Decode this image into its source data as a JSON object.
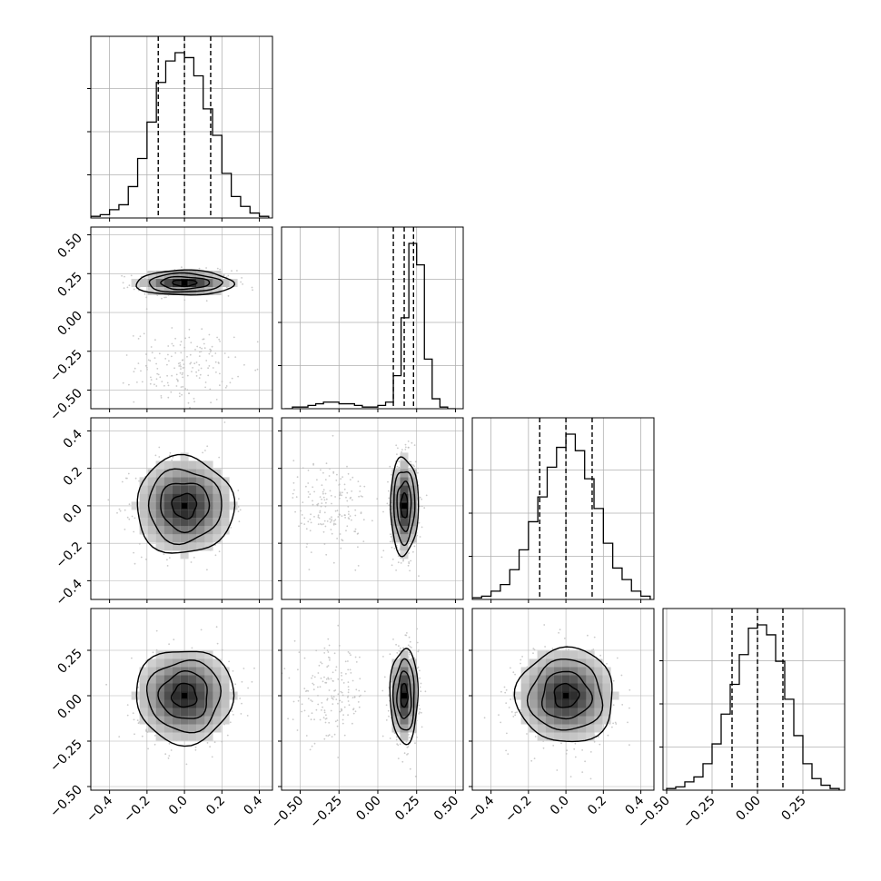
{
  "chart_data": {
    "type": "corner",
    "parameters": 4,
    "grid": true,
    "colors": {
      "hist": "#000000",
      "contour": "#000000",
      "points": "#bdbdbd",
      "grid": "#b0b0b0"
    },
    "axes": [
      {
        "range": [
          -0.5,
          0.47
        ],
        "ticks": [
          -0.4,
          -0.2,
          0.0,
          0.2,
          0.4
        ],
        "tick_labels": [
          "−0.4",
          "−0.2",
          "0.0",
          "0.2",
          "0.4"
        ]
      },
      {
        "range": [
          -0.62,
          0.55
        ],
        "ticks": [
          -0.5,
          -0.25,
          0.0,
          0.25,
          0.5
        ],
        "tick_labels": [
          "−0.50",
          "−0.25",
          "0.00",
          "0.25",
          "0.50"
        ]
      },
      {
        "range": [
          -0.5,
          0.47
        ],
        "ticks": [
          -0.4,
          -0.2,
          0.0,
          0.2,
          0.4
        ],
        "tick_labels": [
          "−0.4",
          "−0.2",
          "0.0",
          "0.2",
          "0.4"
        ]
      },
      {
        "range": [
          -0.52,
          0.48
        ],
        "ticks": [
          -0.5,
          -0.25,
          0.0,
          0.25
        ],
        "tick_labels": [
          "−0.50",
          "−0.25",
          "0.00",
          "0.25"
        ]
      }
    ],
    "marginals": [
      {
        "bin_edges": [
          -0.5,
          -0.45,
          -0.4,
          -0.35,
          -0.3,
          -0.25,
          -0.2,
          -0.15,
          -0.1,
          -0.05,
          0.0,
          0.05,
          0.1,
          0.15,
          0.2,
          0.25,
          0.3,
          0.35,
          0.4,
          0.45
        ],
        "counts": [
          0.01,
          0.02,
          0.05,
          0.08,
          0.19,
          0.36,
          0.58,
          0.82,
          0.95,
          1.0,
          0.97,
          0.86,
          0.66,
          0.5,
          0.27,
          0.13,
          0.07,
          0.03,
          0.01
        ],
        "quantiles": [
          -0.14,
          0.0,
          0.14
        ]
      },
      {
        "bin_edges": [
          -0.6,
          -0.55,
          -0.5,
          -0.45,
          -0.4,
          -0.35,
          -0.3,
          -0.25,
          -0.2,
          -0.15,
          -0.1,
          -0.05,
          0.0,
          0.05,
          0.1,
          0.15,
          0.2,
          0.25,
          0.3,
          0.35,
          0.4,
          0.45,
          0.5
        ],
        "counts": [
          0.0,
          0.01,
          0.01,
          0.02,
          0.03,
          0.04,
          0.04,
          0.03,
          0.03,
          0.02,
          0.01,
          0.01,
          0.02,
          0.04,
          0.2,
          0.55,
          1.0,
          0.87,
          0.3,
          0.06,
          0.01,
          0.0
        ],
        "quantiles": [
          0.1,
          0.17,
          0.23
        ]
      },
      {
        "bin_edges": [
          -0.5,
          -0.45,
          -0.4,
          -0.35,
          -0.3,
          -0.25,
          -0.2,
          -0.15,
          -0.1,
          -0.05,
          0.0,
          0.05,
          0.1,
          0.15,
          0.2,
          0.25,
          0.3,
          0.35,
          0.4,
          0.45
        ],
        "counts": [
          0.01,
          0.02,
          0.05,
          0.09,
          0.18,
          0.3,
          0.47,
          0.62,
          0.8,
          0.92,
          1.0,
          0.9,
          0.73,
          0.55,
          0.34,
          0.19,
          0.12,
          0.05,
          0.02
        ],
        "quantiles": [
          -0.14,
          0.0,
          0.14
        ]
      },
      {
        "bin_edges": [
          -0.5,
          -0.45,
          -0.4,
          -0.35,
          -0.3,
          -0.25,
          -0.2,
          -0.15,
          -0.1,
          -0.05,
          0.0,
          0.05,
          0.1,
          0.15,
          0.2,
          0.25,
          0.3,
          0.35,
          0.4,
          0.45
        ],
        "counts": [
          0.01,
          0.02,
          0.05,
          0.08,
          0.16,
          0.28,
          0.46,
          0.64,
          0.82,
          0.98,
          1.0,
          0.94,
          0.78,
          0.55,
          0.33,
          0.16,
          0.07,
          0.03,
          0.01
        ],
        "quantiles": [
          -0.14,
          0.0,
          0.14
        ]
      }
    ],
    "joints": [
      {
        "x": 0,
        "y": 1,
        "center": [
          0.0,
          0.19
        ],
        "sigma": [
          0.13,
          0.04
        ],
        "outlier_center": [
          0.0,
          -0.35
        ],
        "outlier_sigma": [
          0.13,
          0.12
        ]
      },
      {
        "x": 0,
        "y": 2,
        "center": [
          0.0,
          0.0
        ],
        "sigma": [
          0.13,
          0.13
        ]
      },
      {
        "x": 1,
        "y": 2,
        "center": [
          0.17,
          0.0
        ],
        "sigma": [
          0.045,
          0.13
        ],
        "outlier_center": [
          -0.3,
          0.0
        ],
        "outlier_sigma": [
          0.12,
          0.13
        ]
      },
      {
        "x": 0,
        "y": 3,
        "center": [
          0.0,
          0.0
        ],
        "sigma": [
          0.13,
          0.13
        ]
      },
      {
        "x": 1,
        "y": 3,
        "center": [
          0.17,
          0.0
        ],
        "sigma": [
          0.045,
          0.13
        ],
        "outlier_center": [
          -0.3,
          0.0
        ],
        "outlier_sigma": [
          0.12,
          0.13
        ]
      },
      {
        "x": 2,
        "y": 3,
        "center": [
          0.0,
          0.0
        ],
        "sigma": [
          0.13,
          0.13
        ]
      }
    ]
  }
}
